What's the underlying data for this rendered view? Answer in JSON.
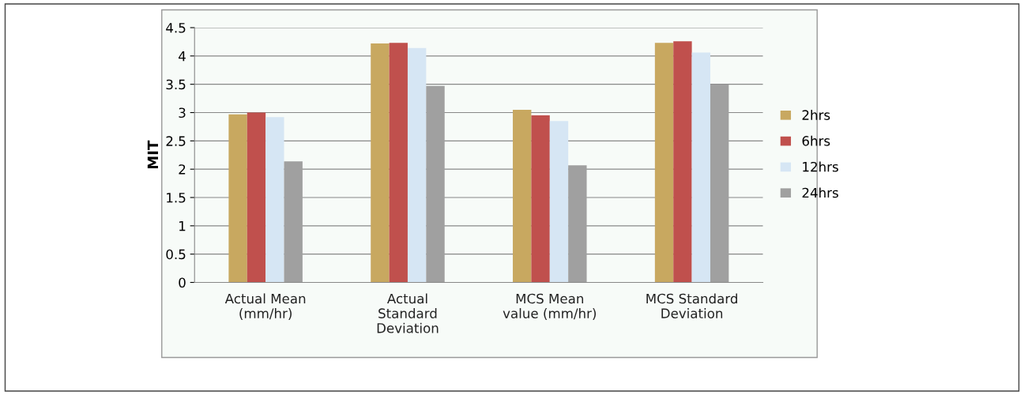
{
  "chart_data": {
    "type": "bar",
    "ylabel": "MIT",
    "categories": [
      "Actual Mean\n(mm/hr)",
      "Actual\nStandard\nDeviation",
      "MCS Mean\nvalue (mm/hr)",
      "MCS Standard\nDeviation"
    ],
    "series": [
      {
        "name": "2hrs",
        "color": "#c8a860",
        "values": [
          2.97,
          4.22,
          3.05,
          4.23
        ]
      },
      {
        "name": "6hrs",
        "color": "#c0504d",
        "values": [
          3.0,
          4.23,
          2.95,
          4.26
        ]
      },
      {
        "name": "12hrs",
        "color": "#d6e6f4",
        "values": [
          2.92,
          4.14,
          2.85,
          4.06
        ]
      },
      {
        "name": "24hrs",
        "color": "#a0a0a0",
        "values": [
          2.14,
          3.47,
          2.07,
          3.5
        ]
      }
    ],
    "ylim": [
      0,
      4.5
    ],
    "yticks": [
      0,
      0.5,
      1,
      1.5,
      2,
      2.5,
      3,
      3.5,
      4,
      4.5
    ],
    "grid": "y",
    "legend": "right"
  }
}
